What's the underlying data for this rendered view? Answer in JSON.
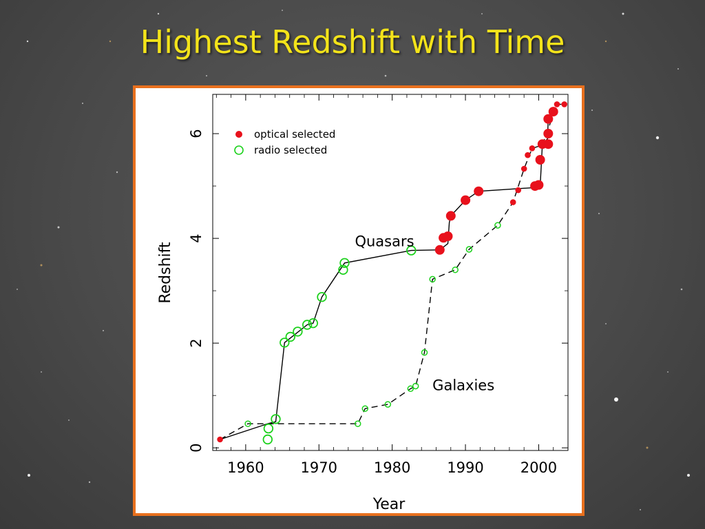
{
  "slide": {
    "title": "Highest Redshift with Time"
  },
  "chart_data": {
    "type": "scatter",
    "title": "",
    "xlabel": "Year",
    "ylabel": "Redshift",
    "xlim": [
      1955.5,
      2004
    ],
    "ylim": [
      -0.05,
      6.75
    ],
    "x_ticks": [
      1960,
      1970,
      1980,
      1990,
      2000
    ],
    "y_ticks": [
      0,
      2,
      4,
      6
    ],
    "grid": false,
    "legend": {
      "placement": "top-left",
      "entries": [
        {
          "label": "optical selected",
          "color": "#e8111c",
          "marker": "filled-circle"
        },
        {
          "label": "radio selected",
          "color": "#1bd11b",
          "marker": "open-circle"
        }
      ]
    },
    "annotations": [
      {
        "text": "Quasars",
        "x": 1983,
        "y": 3.85
      },
      {
        "text": "Galaxies",
        "x": 1985.5,
        "y": 1.1
      }
    ],
    "series": [
      {
        "name": "optical selected",
        "group": "quasars",
        "color": "#e8111c",
        "marker": "filled",
        "points": [
          [
            1956.5,
            0.16,
            1
          ],
          [
            1986.5,
            3.78,
            2
          ],
          [
            1987.0,
            4.01,
            2
          ],
          [
            1987.6,
            4.04,
            2
          ],
          [
            1988.0,
            4.43,
            2
          ],
          [
            1990.0,
            4.73,
            2
          ],
          [
            1991.8,
            4.9,
            2
          ],
          [
            1999.5,
            5.0,
            2
          ],
          [
            2000.0,
            5.02,
            2
          ],
          [
            2000.2,
            5.5,
            2
          ],
          [
            2000.5,
            5.8,
            2
          ],
          [
            2001.3,
            5.8,
            2
          ],
          [
            2001.3,
            6.0,
            2
          ],
          [
            2001.3,
            6.28,
            2
          ],
          [
            2002.0,
            6.42,
            2
          ]
        ]
      },
      {
        "name": "optical selected",
        "group": "galaxies",
        "color": "#e8111c",
        "marker": "filled",
        "points": [
          [
            1996.5,
            4.69,
            1
          ],
          [
            1997.2,
            4.92,
            1
          ],
          [
            1998.0,
            5.33,
            1
          ],
          [
            1998.5,
            5.59,
            1
          ],
          [
            1999.1,
            5.72,
            1
          ],
          [
            2000.5,
            5.78,
            1
          ],
          [
            2002.5,
            6.56,
            1
          ],
          [
            2003.5,
            6.56,
            1
          ]
        ]
      },
      {
        "name": "radio selected",
        "group": "quasars",
        "color": "#1bd11b",
        "marker": "open",
        "points": [
          [
            1963.0,
            0.16,
            2
          ],
          [
            1963.1,
            0.37,
            2
          ],
          [
            1964.1,
            0.55,
            2
          ],
          [
            1965.3,
            2.01,
            2
          ],
          [
            1966.1,
            2.12,
            2
          ],
          [
            1967.1,
            2.22,
            2
          ],
          [
            1968.4,
            2.35,
            2
          ],
          [
            1969.2,
            2.38,
            2
          ],
          [
            1970.4,
            2.88,
            2
          ],
          [
            1973.3,
            3.4,
            2
          ],
          [
            1973.5,
            3.53,
            2
          ],
          [
            1982.6,
            3.77,
            2
          ]
        ]
      },
      {
        "name": "radio selected",
        "group": "galaxies",
        "color": "#1bd11b",
        "marker": "open",
        "points": [
          [
            1960.3,
            0.46,
            1
          ],
          [
            1975.3,
            0.46,
            1
          ],
          [
            1976.3,
            0.75,
            1
          ],
          [
            1979.4,
            0.83,
            1
          ],
          [
            1982.5,
            1.13,
            1
          ],
          [
            1983.2,
            1.18,
            1
          ],
          [
            1984.4,
            1.82,
            1
          ],
          [
            1985.5,
            3.22,
            1
          ],
          [
            1988.6,
            3.4,
            1
          ],
          [
            1990.5,
            3.79,
            1
          ],
          [
            1994.4,
            4.25,
            1
          ]
        ]
      }
    ],
    "lines": [
      {
        "group": "quasars",
        "style": "solid",
        "points": [
          [
            1956.5,
            0.16
          ],
          [
            1963.0,
            0.46
          ],
          [
            1964.1,
            0.5
          ],
          [
            1965.3,
            2.01
          ],
          [
            1968.4,
            2.35
          ],
          [
            1969.2,
            2.38
          ],
          [
            1970.4,
            2.88
          ],
          [
            1973.5,
            3.53
          ],
          [
            1982.6,
            3.77
          ],
          [
            1986.5,
            3.78
          ],
          [
            1987.6,
            3.9
          ],
          [
            1987.8,
            4.3
          ],
          [
            1988.0,
            4.43
          ],
          [
            1990.0,
            4.73
          ],
          [
            1991.8,
            4.9
          ],
          [
            1999.5,
            4.97
          ],
          [
            2000.2,
            5.0
          ],
          [
            2000.5,
            5.8
          ],
          [
            2001.2,
            5.9
          ],
          [
            2001.3,
            6.28
          ],
          [
            2002.0,
            6.42
          ]
        ]
      },
      {
        "group": "galaxies",
        "style": "dashed",
        "points": [
          [
            1956.5,
            0.16
          ],
          [
            1960.3,
            0.46
          ],
          [
            1975.3,
            0.46
          ],
          [
            1976.3,
            0.75
          ],
          [
            1979.4,
            0.83
          ],
          [
            1982.5,
            1.13
          ],
          [
            1983.2,
            1.18
          ],
          [
            1984.4,
            1.82
          ],
          [
            1985.5,
            3.22
          ],
          [
            1988.6,
            3.4
          ],
          [
            1990.5,
            3.79
          ],
          [
            1994.4,
            4.25
          ],
          [
            1996.5,
            4.69
          ],
          [
            1998.0,
            5.33
          ],
          [
            1999.1,
            5.72
          ],
          [
            2000.5,
            5.78
          ],
          [
            2001.2,
            6.05
          ],
          [
            2002.5,
            6.56
          ],
          [
            2003.5,
            6.56
          ]
        ]
      }
    ]
  }
}
